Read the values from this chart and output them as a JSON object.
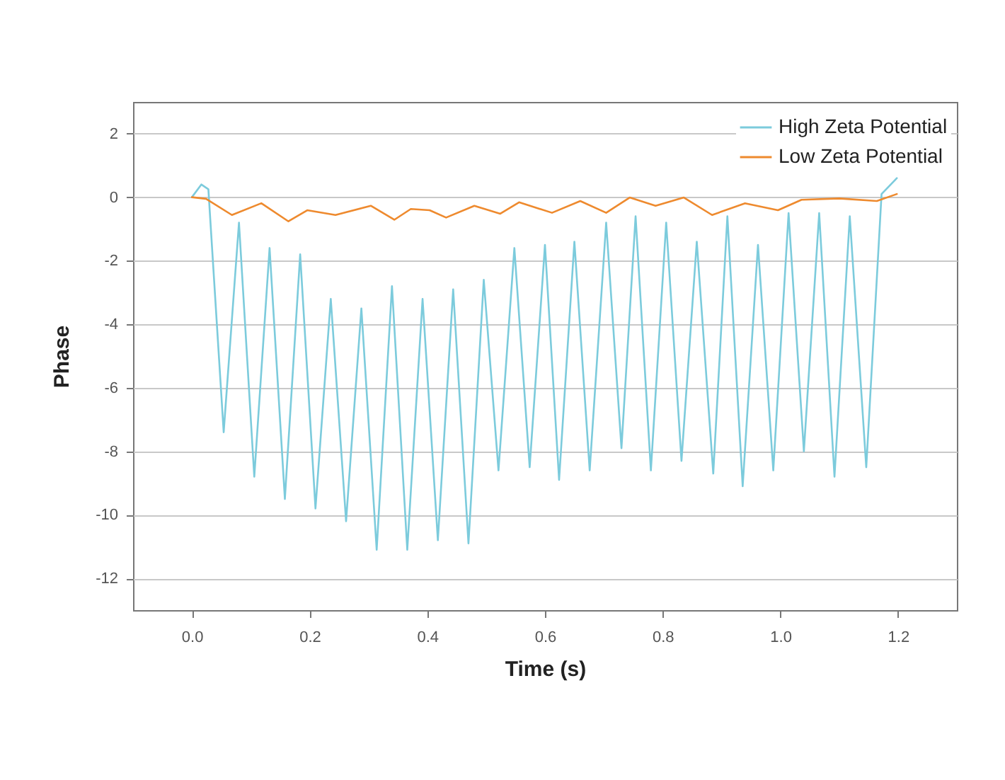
{
  "chart_data": {
    "type": "line",
    "xlabel": "Time (s)",
    "ylabel": "Phase",
    "xlim": [
      -0.1,
      1.3
    ],
    "ylim": [
      -13,
      3
    ],
    "xticks": [
      {
        "value": 0,
        "label": "0.0"
      },
      0.2,
      0.4,
      0.6,
      0.8,
      {
        "value": 1,
        "label": "1.0"
      },
      1.2
    ],
    "yticks": [
      -12,
      -10,
      -8,
      -6,
      -4,
      -2,
      0,
      2
    ],
    "grid": "y",
    "legend": "top right",
    "line_style": "solid",
    "marker": "none",
    "series": [
      {
        "name": "High Zeta Potential",
        "color": "#7ccbdc",
        "x": [
          0,
          0.016,
          0.028,
          0.054,
          0.08,
          0.106,
          0.132,
          0.158,
          0.184,
          0.21,
          0.236,
          0.262,
          0.288,
          0.314,
          0.34,
          0.366,
          0.392,
          0.418,
          0.444,
          0.47,
          0.496,
          0.521,
          0.548,
          0.574,
          0.6,
          0.624,
          0.65,
          0.676,
          0.704,
          0.73,
          0.754,
          0.78,
          0.806,
          0.832,
          0.858,
          0.886,
          0.91,
          0.936,
          0.962,
          0.988,
          1.014,
          1.04,
          1.066,
          1.092,
          1.118,
          1.146,
          1.172,
          1.198
        ],
        "values": [
          0,
          0.4,
          0.25,
          -7.4,
          -0.8,
          -8.8,
          -1.6,
          -9.5,
          -1.8,
          -9.8,
          -3.2,
          -10.2,
          -3.5,
          -11.1,
          -2.8,
          -11.1,
          -3.2,
          -10.8,
          -2.9,
          -10.9,
          -2.6,
          -8.6,
          -1.6,
          -8.5,
          -1.5,
          -8.9,
          -1.4,
          -8.6,
          -0.8,
          -7.9,
          -0.6,
          -8.6,
          -0.8,
          -8.3,
          -1.4,
          -8.7,
          -0.6,
          -9.1,
          -1.5,
          -8.6,
          -0.5,
          -8.0,
          -0.5,
          -8.8,
          -0.6,
          -8.5,
          0.1,
          0.6
        ]
      },
      {
        "name": "Low Zeta Potential",
        "color": "#ee8a2e",
        "x": [
          0,
          0.024,
          0.068,
          0.118,
          0.164,
          0.196,
          0.244,
          0.304,
          0.344,
          0.372,
          0.404,
          0.432,
          0.48,
          0.524,
          0.556,
          0.612,
          0.66,
          0.704,
          0.744,
          0.788,
          0.836,
          0.884,
          0.94,
          0.996,
          1.036,
          1.1,
          1.164,
          1.198
        ],
        "values": [
          0,
          -0.05,
          -0.56,
          -0.19,
          -0.76,
          -0.41,
          -0.56,
          -0.27,
          -0.71,
          -0.37,
          -0.41,
          -0.64,
          -0.27,
          -0.52,
          -0.16,
          -0.49,
          -0.12,
          -0.49,
          -0.01,
          -0.27,
          -0.01,
          -0.56,
          -0.19,
          -0.41,
          -0.08,
          -0.04,
          -0.12,
          0.1
        ]
      }
    ]
  }
}
